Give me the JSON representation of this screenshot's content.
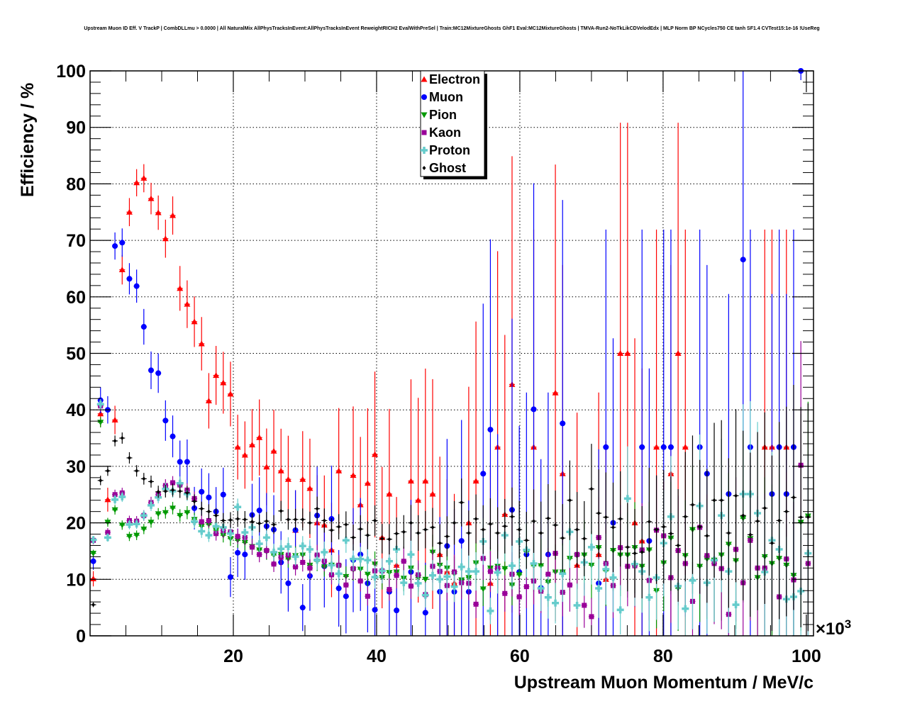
{
  "chart_data": {
    "type": "scatter",
    "title": "Upstream Muon ID Eff. V TrackP | CombDLLmu > 0.0000 | All NaturalMix AllPhysTracksInEvent:AllPhysTracksInEvent ReweightRICH2 EvalWithPreSel | Train:MC12MixtureGhosts GhF1 Eval:MC12MixtureGhosts | TMVA-Run2-NoTkLikCDVelodEdx | MLP Norm BP NCycles750 CE tanh SF1.4 CVTest15:1e-16 !UseReg",
    "xlabel": "Upstream Muon Momentum / MeV/c",
    "ylabel": "Efficiency / %",
    "x_multiplier": "×10",
    "x_multiplier_exp": "3",
    "xlim": [
      0,
      101
    ],
    "ylim": [
      0,
      100
    ],
    "xticks": [
      "20",
      "40",
      "60",
      "80",
      "100"
    ],
    "yticks": [
      "0",
      "10",
      "20",
      "30",
      "40",
      "50",
      "60",
      "70",
      "80",
      "90",
      "100"
    ],
    "grid": true,
    "legend_position": "top-center",
    "bin_first_center": 0.45,
    "bin_width": 1.008,
    "series": [
      {
        "name": "Electron",
        "color": "#ff0000",
        "marker": "triangle-up",
        "values": [
          10.1,
          39.3,
          24.1,
          38.2,
          64.8,
          75.0,
          80.2,
          81.0,
          77.4,
          74.9,
          70.3,
          74.4,
          61.5,
          58.7,
          55.6,
          51.7,
          41.6,
          46.1,
          44.8,
          42.8,
          33.4,
          32,
          33.8,
          35.1,
          29.9,
          32.7,
          29.2,
          27.7,
          18.7,
          27.7,
          26.1,
          20,
          19.6,
          15.2,
          29.2,
          null,
          28.4,
          23.2,
          27,
          32.1,
          17.4,
          25.1,
          12.5,
          null,
          27.4,
          24,
          27.4,
          25.1,
          14.4,
          11.3,
          9.3,
          null,
          20,
          27.4,
          null,
          9.3,
          33.4,
          21.5,
          44.5,
          null,
          null,
          33.4,
          null,
          null,
          43,
          28.7,
          null,
          12.5,
          null,
          null,
          14.4,
          10,
          null,
          50,
          50,
          20,
          16.8,
          null,
          33.4,
          null,
          28.7,
          50,
          33.4,
          null,
          null,
          null,
          null,
          null,
          null,
          null,
          null,
          null,
          null,
          33.4,
          33.4,
          null,
          33.4,
          null,
          null,
          null
        ]
      },
      {
        "name": "Muon",
        "color": "#0000ff",
        "marker": "circle",
        "values": [
          13.2,
          41.7,
          40,
          69,
          69.6,
          63.2,
          61.9,
          54.7,
          47,
          46.5,
          38.1,
          35.3,
          30.8,
          30.8,
          22.6,
          25.5,
          24.5,
          22,
          25,
          10.4,
          14.7,
          14.4,
          21.4,
          22.2,
          19.4,
          18.8,
          13,
          9.3,
          18.7,
          5,
          10.6,
          21.3,
          12.3,
          20.7,
          8.4,
          7,
          13.4,
          14.4,
          9.3,
          4.6,
          null,
          7.8,
          4.5,
          null,
          11.3,
          null,
          4.1,
          null,
          7.8,
          15.9,
          7.8,
          16.8,
          7.8,
          null,
          28.7,
          36.5,
          11.9,
          null,
          22.3,
          11.3,
          14.4,
          40.1,
          8.5,
          14.4,
          null,
          37.6,
          null,
          null,
          null,
          null,
          9.3,
          33.4,
          20,
          null,
          null,
          null,
          33.4,
          16.8,
          null,
          33.4,
          33.4,
          null,
          null,
          null,
          33.4,
          28.7,
          null,
          null,
          25.1,
          null,
          66.6,
          33.4,
          null,
          null,
          25.1,
          33.4,
          25.1,
          33.4,
          100,
          null
        ]
      },
      {
        "name": "Pion",
        "color": "#009900",
        "marker": "triangle-down",
        "values": [
          14.6,
          37.8,
          20.1,
          22.3,
          19.6,
          17.6,
          17.8,
          18.9,
          20.1,
          21.6,
          21.8,
          22.6,
          21.3,
          21.8,
          20.6,
          19.4,
          19.7,
          18.7,
          17.8,
          17.2,
          16.9,
          16.5,
          15.8,
          15.2,
          14.9,
          14.3,
          14.4,
          13.6,
          14.2,
          14.3,
          12.5,
          13.2,
          12.2,
          12.5,
          12.3,
          10.5,
          11.7,
          11.8,
          10.9,
          12.7,
          10.3,
          11.2,
          11.3,
          10.2,
          12,
          10.3,
          10,
          14.8,
          12.5,
          12,
          11,
          9.9,
          10.3,
          12.9,
          8.3,
          12,
          12.3,
          11.9,
          9,
          10.8,
          14.9,
          12.4,
          12.4,
          9.5,
          11.3,
          11.3,
          13.7,
          14.2,
          14.3,
          12.5,
          15.6,
          11.5,
          15.1,
          14.3,
          14.3,
          15.6,
          12.3,
          15.2,
          8,
          12.9,
          17.3,
          8.4,
          14.2,
          18.8,
          12.3,
          13.6,
          13.4,
          14.3,
          16.2,
          13.3,
          20.8,
          17.2,
          10.3,
          14,
          12.8,
          13.7,
          12.5,
          10.7,
          20.1,
          21.2
        ]
      },
      {
        "name": "Kaon",
        "color": "#990099",
        "marker": "square",
        "values": [
          16.9,
          40.7,
          18.3,
          25,
          25.3,
          20.4,
          20.3,
          21.3,
          23.6,
          25,
          26.6,
          27.1,
          26.7,
          25.8,
          24.3,
          20.2,
          20.4,
          18.1,
          18.6,
          18.4,
          17.6,
          17.4,
          15.7,
          14.4,
          15.1,
          12.7,
          13.9,
          14.3,
          12.2,
          13,
          12,
          14.3,
          13.2,
          10.8,
          12.5,
          9,
          11.9,
          9.7,
          7,
          11.5,
          11.5,
          8.2,
          10.7,
          13.2,
          8.8,
          10.8,
          7.3,
          12.3,
          11.4,
          8.9,
          11.3,
          9.4,
          9.3,
          5.6,
          13.7,
          11.4,
          12,
          7.5,
          10.9,
          6.9,
          8.7,
          9.7,
          7.9,
          10.9,
          14.6,
          7.7,
          9,
          14.4,
          5.4,
          3.4,
          17.4,
          12.8,
          8.9,
          15.6,
          12.3,
          12.4,
          15.2,
          9.8,
          18.7,
          17.7,
          10.3,
          15.1,
          12.8,
          6.1,
          19.2,
          14.2,
          12.8,
          11.9,
          3.8,
          15.3,
          9.4,
          16.9,
          12,
          12,
          null,
          6.9,
          13.6,
          9.9,
          30.2,
          12.8
        ]
      },
      {
        "name": "Proton",
        "color": "#66cccc",
        "marker": "cross",
        "values": [
          17,
          41,
          17.4,
          24.1,
          24.6,
          19.7,
          19.8,
          21.3,
          23.1,
          24.5,
          26,
          25.6,
          27,
          25.1,
          20.2,
          18.5,
          17.8,
          19.4,
          19.2,
          18.1,
          22.8,
          18.3,
          19.2,
          16.3,
          17.4,
          14.8,
          15.4,
          15.8,
          14,
          15.9,
          15.3,
          13.4,
          14.8,
          12.5,
          11,
          16.9,
          13.6,
          13.6,
          13.4,
          10.4,
          11.5,
          13.2,
          15.3,
          9.4,
          14.4,
          9.3,
          7.2,
          10.7,
          10,
          10.5,
          8.7,
          12.2,
          11.4,
          11.4,
          16.7,
          4.4,
          11.2,
          17.8,
          12.4,
          16.7,
          15.2,
          12.8,
          8.4,
          6.8,
          5.8,
          11,
          18.4,
          5.4,
          13,
          15.7,
          8.4,
          11.8,
          10.3,
          4.6,
          24.3,
          12.7,
          11.4,
          6.8,
          10.3,
          16.4,
          21.1,
          8.8,
          4.8,
          9.8,
          23,
          9.4,
          13.4,
          21.3,
          11.4,
          5.5,
          25.1,
          25.1,
          21.7,
          11.3,
          16.9,
          15.3,
          6.5,
          6.9,
          7.9,
          14.6
        ]
      },
      {
        "name": "Ghost",
        "color": "#000000",
        "marker": "diamond",
        "values": [
          5.5,
          27.5,
          29.2,
          34.5,
          35,
          31.5,
          29.2,
          27.8,
          27.3,
          25.5,
          25.6,
          25.8,
          25.6,
          25.3,
          23.8,
          22.5,
          22,
          21.3,
          20.4,
          20.5,
          20.7,
          20.6,
          20.2,
          19.9,
          20.3,
          19.7,
          22.1,
          20.6,
          20.6,
          20.6,
          20,
          22.5,
          20.4,
          18.7,
          19.3,
          19.7,
          17.4,
          18.9,
          17.8,
          20.4,
          17.2,
          17.1,
          18.1,
          18.4,
          20,
          18.2,
          18.8,
          19.2,
          16.4,
          17.6,
          20,
          23.6,
          18.2,
          20.7,
          18.8,
          19.8,
          18.2,
          19.4,
          21.1,
          18.8,
          16.9,
          20.3,
          18.2,
          20.8,
          19.6,
          17.3,
          24,
          18.8,
          17.2,
          26,
          21.7,
          21,
          19.2,
          20.7,
          15.7,
          14.6,
          14.8,
          20.2,
          18.8,
          19.3,
          18.1,
          16,
          21.1,
          23.2,
          19.3,
          17.7,
          24,
          24,
          18.2,
          24.8,
          21.3,
          17.9,
          20.3,
          22.6,
          16.4,
          20.4,
          22,
          24.5,
          21,
          21
        ]
      }
    ]
  }
}
